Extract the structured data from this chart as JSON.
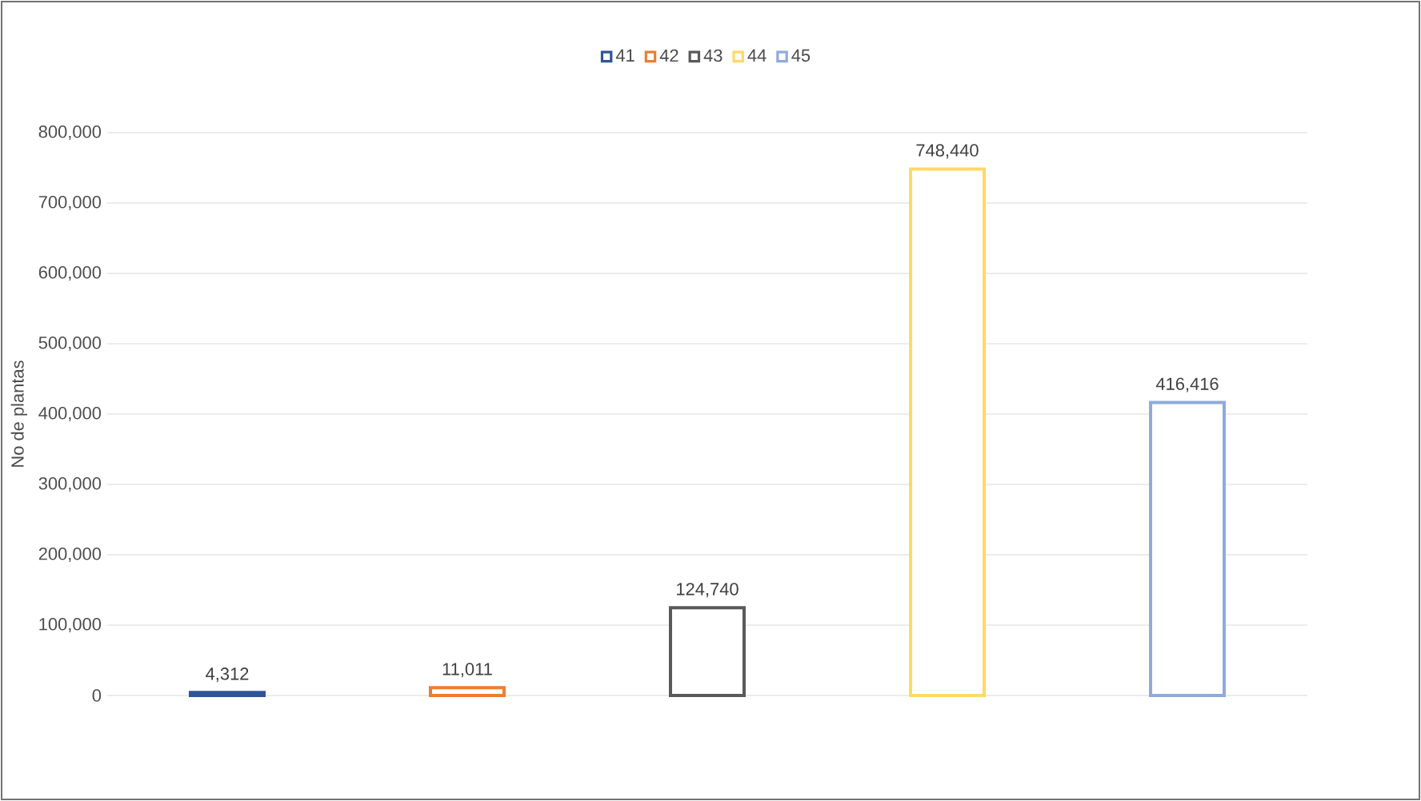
{
  "chart_data": {
    "type": "bar",
    "ylabel": "No de plantas",
    "categories": [
      null,
      null,
      null,
      null,
      null
    ],
    "series": [
      {
        "name": "41",
        "color": "#2f5597",
        "values": [
          4312,
          null,
          null,
          null,
          null
        ],
        "value_labels": [
          "4,312",
          null,
          null,
          null,
          null
        ]
      },
      {
        "name": "42",
        "color": "#ed7d31",
        "values": [
          null,
          11011,
          null,
          null,
          null
        ],
        "value_labels": [
          null,
          "11,011",
          null,
          null,
          null
        ]
      },
      {
        "name": "43",
        "color": "#595959",
        "values": [
          null,
          null,
          124740,
          null,
          null
        ],
        "value_labels": [
          null,
          null,
          "124,740",
          null,
          null
        ]
      },
      {
        "name": "44",
        "color": "#ffd966",
        "values": [
          null,
          null,
          null,
          748440,
          null
        ],
        "value_labels": [
          null,
          null,
          null,
          "748,440",
          null
        ]
      },
      {
        "name": "45",
        "color": "#8faadc",
        "values": [
          null,
          null,
          null,
          null,
          416416
        ],
        "value_labels": [
          null,
          null,
          null,
          null,
          "416,416"
        ]
      }
    ],
    "ylim": [
      0,
      800000
    ],
    "yticks": [
      {
        "value": 0,
        "label": "0"
      },
      {
        "value": 100000,
        "label": "100,000"
      },
      {
        "value": 200000,
        "label": "200,000"
      },
      {
        "value": 300000,
        "label": "300,000"
      },
      {
        "value": 400000,
        "label": "400,000"
      },
      {
        "value": 500000,
        "label": "500,000"
      },
      {
        "value": 600000,
        "label": "600,000"
      },
      {
        "value": 700000,
        "label": "700,000"
      },
      {
        "value": 800000,
        "label": "800,000"
      }
    ],
    "grid": "y",
    "legend": "top"
  }
}
